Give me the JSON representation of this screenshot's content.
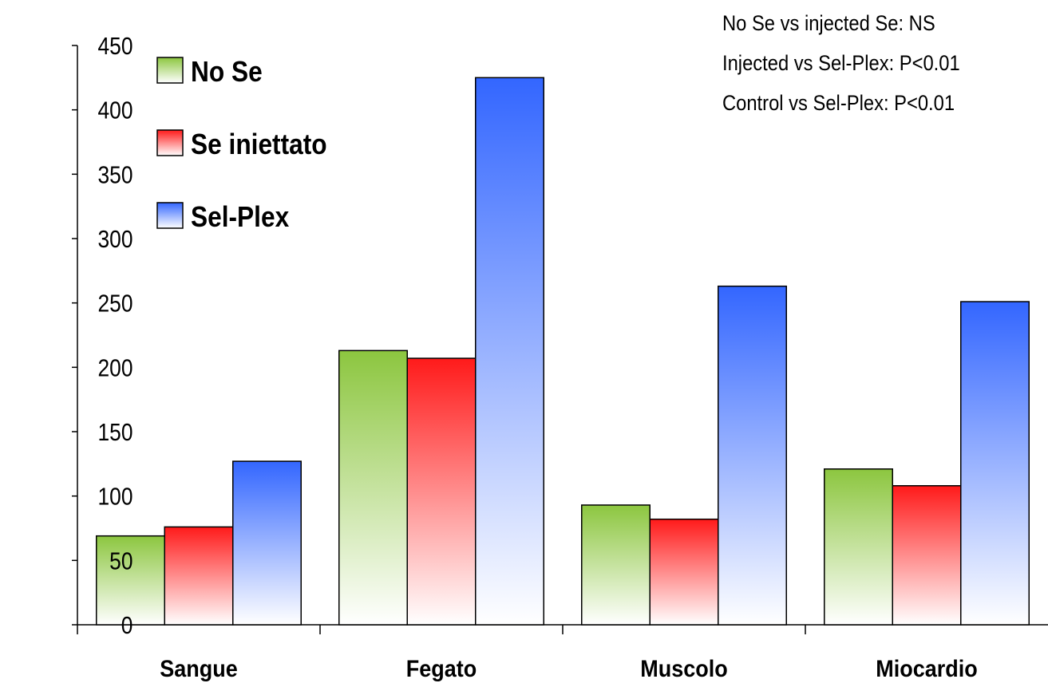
{
  "chart_data": {
    "type": "bar",
    "categories": [
      "Sangue",
      "Fegato",
      "Muscolo",
      "Miocardio"
    ],
    "series": [
      {
        "name": "No Se",
        "values": [
          69,
          213,
          93,
          121
        ],
        "color": "#8cc63f"
      },
      {
        "name": "Se iniettato",
        "values": [
          76,
          207,
          82,
          108
        ],
        "color": "#ff1a1a"
      },
      {
        "name": "Sel-Plex",
        "values": [
          127,
          425,
          263,
          251
        ],
        "color": "#3366ff"
      }
    ],
    "ylim": [
      0,
      450
    ],
    "yticks": [
      0,
      50,
      100,
      150,
      200,
      250,
      300,
      350,
      400,
      450
    ],
    "legend_position": "top-left",
    "grid": false,
    "annotations": [
      "No Se vs injected Se: NS",
      "Injected vs Sel-Plex: P<0.01",
      "Control vs Sel-Plex: P<0.01"
    ]
  }
}
